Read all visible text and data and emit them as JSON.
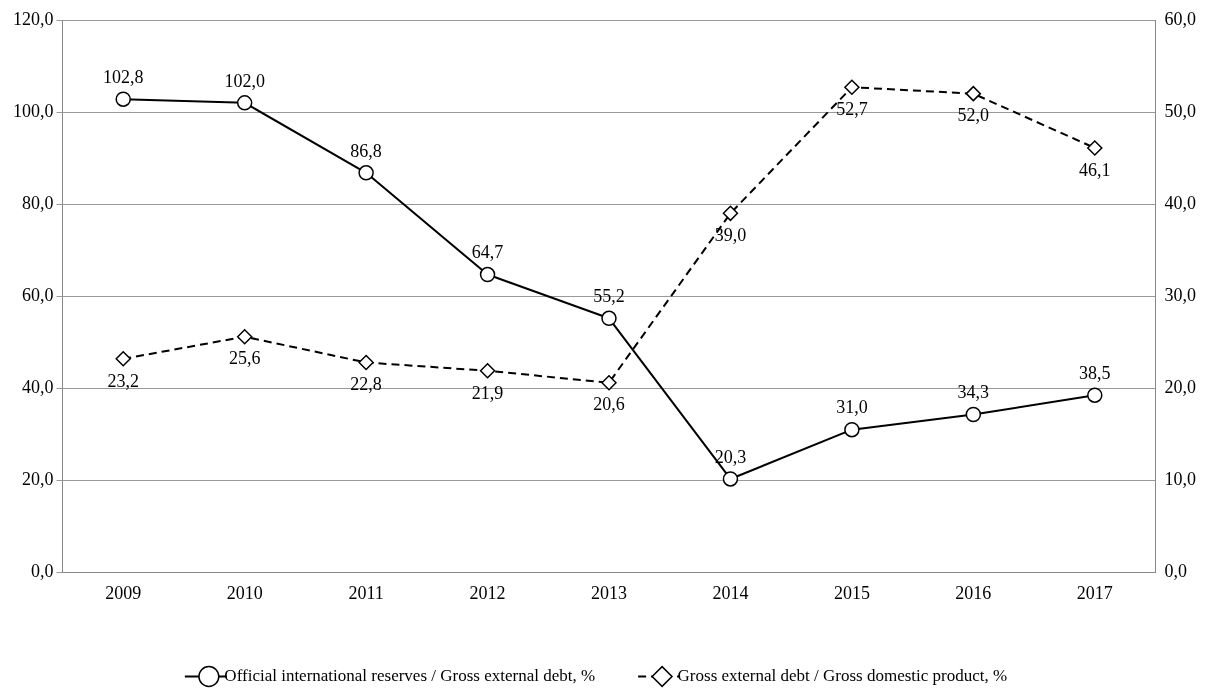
{
  "chart_data": {
    "type": "line",
    "categories": [
      "2009",
      "2010",
      "2011",
      "2012",
      "2013",
      "2014",
      "2015",
      "2016",
      "2017"
    ],
    "series": [
      {
        "name": "Official international reserves / Gross external debt, %",
        "color": "#000000",
        "marker": "circle",
        "line_style": "solid",
        "values": [
          102.8,
          102.0,
          86.8,
          64.7,
          55.2,
          20.3,
          31.0,
          34.3,
          38.5
        ],
        "value_labels": [
          "102,8",
          "102,0",
          "86,8",
          "64,7",
          "55,2",
          "20,3",
          "31,0",
          "34,3",
          "38,5"
        ]
      },
      {
        "name": "Gross external debt / Gross domestic product, %",
        "color": "#000000",
        "marker": "diamond",
        "line_style": "dashed",
        "axis": "y2",
        "values": [
          23.2,
          25.6,
          22.8,
          21.9,
          20.6,
          39.0,
          52.7,
          52.0,
          46.1
        ],
        "value_labels": [
          "23,2",
          "25,6",
          "22,8",
          "21,9",
          "20,6",
          "39,0",
          "52,7",
          "52,0",
          "46,1"
        ]
      }
    ],
    "ylim": [
      0,
      120
    ],
    "yticks": [
      {
        "value": 0,
        "label": "0,0"
      },
      {
        "value": 20,
        "label": "20,0"
      },
      {
        "value": 40,
        "label": "40,0"
      },
      {
        "value": 60,
        "label": "60,0"
      },
      {
        "value": 80,
        "label": "80,0"
      },
      {
        "value": 100,
        "label": "100,0"
      },
      {
        "value": 120,
        "label": "120,0"
      }
    ],
    "y2lim": [
      0,
      60
    ],
    "y2ticks": [
      {
        "value": 0,
        "label": "0,0"
      },
      {
        "value": 10,
        "label": "10,0"
      },
      {
        "value": 20,
        "label": "20,0"
      },
      {
        "value": 30,
        "label": "30,0"
      },
      {
        "value": 40,
        "label": "40,0"
      },
      {
        "value": 50,
        "label": "50,0"
      },
      {
        "value": 60,
        "label": "60,0"
      }
    ],
    "grid": "y",
    "legend": "bottom"
  }
}
